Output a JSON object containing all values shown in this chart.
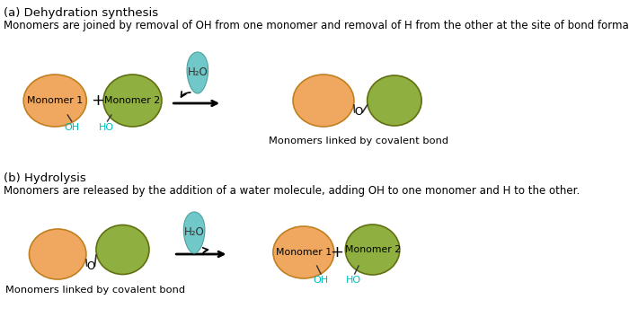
{
  "bg_color": "#ffffff",
  "monomer1_color": "#F0A860",
  "monomer2_color": "#8FB040",
  "monomer1_edge": "#C08020",
  "monomer2_edge": "#607010",
  "water_color": "#70C8C8",
  "water_edge": "#50A0A0",
  "oh_color": "#00BBBB",
  "text_color": "#000000",
  "line_color": "#333333",
  "title_a": "(a) Dehydration synthesis",
  "desc_a": "Monomers are joined by removal of OH from one monomer and removal of H from the other at the site of bond formation.",
  "title_b": "(b) Hydrolysis",
  "desc_b": "Monomers are released by the addition of a water molecule, adding OH to one monomer and H to the other.",
  "label_linked": "Monomers linked by covalent bond",
  "h2o": "H₂O",
  "fs_title": 9.5,
  "fs_desc": 8.5,
  "fs_label": 8.2,
  "fs_monomer": 7.8,
  "fs_h2o": 8.5,
  "fs_plus": 13,
  "fs_oh": 8.0,
  "fs_o": 8.5
}
